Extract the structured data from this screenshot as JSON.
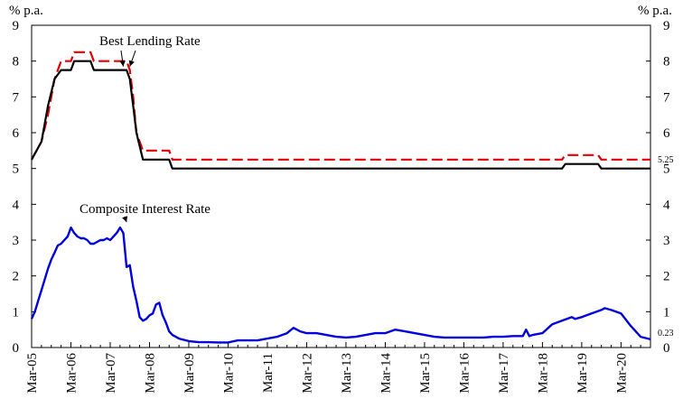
{
  "chart_data": {
    "type": "line",
    "left_axis_unit": "% p.a.",
    "right_axis_unit": "% p.a.",
    "ylim": [
      0,
      9
    ],
    "yticks": [
      0,
      1,
      2,
      3,
      4,
      5,
      6,
      7,
      8,
      9
    ],
    "xlim": [
      "2005-03",
      "2020-12"
    ],
    "xtick_labels": [
      "Mar-05",
      "Mar-06",
      "Mar-07",
      "Mar-08",
      "Mar-09",
      "Mar-10",
      "Mar-11",
      "Mar-12",
      "Mar-13",
      "Mar-14",
      "Mar-15",
      "Mar-16",
      "Mar-17",
      "Mar-18",
      "Mar-19",
      "Mar-20"
    ],
    "grid": false,
    "colors": {
      "best_lending_rate_upper": "#e00000",
      "best_lending_rate_lower": "#000000",
      "composite_interest_rate": "#0000dd",
      "axis": "#000000"
    },
    "annotations": [
      {
        "text": "Best Lending Rate",
        "target_series": "best_lending_rate",
        "targets": [
          {
            "date": "2007-07",
            "y": 7.75
          },
          {
            "date": "2007-09",
            "y": 7.75
          }
        ]
      },
      {
        "text": "Composite Interest Rate",
        "target_series": "composite_interest_rate",
        "targets": [
          {
            "date": "2007-08",
            "y": 3.4
          }
        ]
      }
    ],
    "end_labels": [
      {
        "text": "5.25",
        "series": "best_lending_rate_upper",
        "value": 5.25
      },
      {
        "text": "0.23",
        "series": "composite_interest_rate",
        "value": 0.23
      }
    ],
    "series": [
      {
        "id": "best_lending_rate_upper",
        "style": "dashed",
        "points": [
          [
            "2005-03",
            5.25
          ],
          [
            "2005-06",
            5.75
          ],
          [
            "2005-08",
            6.5
          ],
          [
            "2005-10",
            7.5
          ],
          [
            "2005-12",
            8.0
          ],
          [
            "2006-03",
            8.0
          ],
          [
            "2006-04",
            8.25
          ],
          [
            "2006-09",
            8.25
          ],
          [
            "2006-10",
            8.0
          ],
          [
            "2007-08",
            8.0
          ],
          [
            "2007-09",
            7.75
          ],
          [
            "2007-10",
            7.0
          ],
          [
            "2007-11",
            6.0
          ],
          [
            "2008-01",
            5.5
          ],
          [
            "2008-09",
            5.5
          ],
          [
            "2008-10",
            5.25
          ],
          [
            "2018-09",
            5.25
          ],
          [
            "2018-10",
            5.375
          ],
          [
            "2019-08",
            5.375
          ],
          [
            "2019-09",
            5.25
          ],
          [
            "2020-12",
            5.25
          ]
        ]
      },
      {
        "id": "best_lending_rate_lower",
        "style": "solid",
        "points": [
          [
            "2005-03",
            5.25
          ],
          [
            "2005-06",
            5.75
          ],
          [
            "2005-08",
            6.75
          ],
          [
            "2005-10",
            7.5
          ],
          [
            "2005-12",
            7.75
          ],
          [
            "2006-03",
            7.75
          ],
          [
            "2006-04",
            8.0
          ],
          [
            "2006-09",
            8.0
          ],
          [
            "2006-10",
            7.75
          ],
          [
            "2007-06",
            7.75
          ],
          [
            "2007-08",
            7.75
          ],
          [
            "2007-09",
            7.5
          ],
          [
            "2007-10",
            6.75
          ],
          [
            "2007-11",
            6.0
          ],
          [
            "2008-01",
            5.25
          ],
          [
            "2008-09",
            5.25
          ],
          [
            "2008-10",
            5.0
          ],
          [
            "2018-09",
            5.0
          ],
          [
            "2018-10",
            5.125
          ],
          [
            "2019-08",
            5.125
          ],
          [
            "2019-09",
            5.0
          ],
          [
            "2020-12",
            5.0
          ]
        ]
      },
      {
        "id": "composite_interest_rate",
        "style": "solid",
        "points": [
          [
            "2005-03",
            0.8
          ],
          [
            "2005-04",
            1.0
          ],
          [
            "2005-05",
            1.3
          ],
          [
            "2005-06",
            1.6
          ],
          [
            "2005-07",
            1.9
          ],
          [
            "2005-08",
            2.2
          ],
          [
            "2005-09",
            2.45
          ],
          [
            "2005-10",
            2.65
          ],
          [
            "2005-11",
            2.85
          ],
          [
            "2005-12",
            2.9
          ],
          [
            "2006-01",
            3.0
          ],
          [
            "2006-02",
            3.1
          ],
          [
            "2006-03",
            3.35
          ],
          [
            "2006-04",
            3.2
          ],
          [
            "2006-05",
            3.1
          ],
          [
            "2006-06",
            3.05
          ],
          [
            "2006-07",
            3.05
          ],
          [
            "2006-08",
            3.0
          ],
          [
            "2006-09",
            2.9
          ],
          [
            "2006-10",
            2.9
          ],
          [
            "2006-11",
            2.95
          ],
          [
            "2006-12",
            3.0
          ],
          [
            "2007-01",
            3.0
          ],
          [
            "2007-02",
            3.05
          ],
          [
            "2007-03",
            3.0
          ],
          [
            "2007-04",
            3.1
          ],
          [
            "2007-05",
            3.2
          ],
          [
            "2007-06",
            3.35
          ],
          [
            "2007-07",
            3.2
          ],
          [
            "2007-08",
            2.25
          ],
          [
            "2007-09",
            2.3
          ],
          [
            "2007-10",
            1.7
          ],
          [
            "2007-11",
            1.3
          ],
          [
            "2007-12",
            0.85
          ],
          [
            "2008-01",
            0.75
          ],
          [
            "2008-02",
            0.8
          ],
          [
            "2008-03",
            0.9
          ],
          [
            "2008-04",
            0.95
          ],
          [
            "2008-05",
            1.2
          ],
          [
            "2008-06",
            1.25
          ],
          [
            "2008-07",
            0.9
          ],
          [
            "2008-08",
            0.7
          ],
          [
            "2008-09",
            0.45
          ],
          [
            "2008-10",
            0.35
          ],
          [
            "2008-11",
            0.3
          ],
          [
            "2008-12",
            0.25
          ],
          [
            "2009-03",
            0.18
          ],
          [
            "2009-06",
            0.15
          ],
          [
            "2009-09",
            0.15
          ],
          [
            "2009-12",
            0.14
          ],
          [
            "2010-03",
            0.14
          ],
          [
            "2010-06",
            0.2
          ],
          [
            "2010-09",
            0.2
          ],
          [
            "2010-12",
            0.2
          ],
          [
            "2011-03",
            0.25
          ],
          [
            "2011-06",
            0.3
          ],
          [
            "2011-09",
            0.4
          ],
          [
            "2011-11",
            0.55
          ],
          [
            "2012-01",
            0.45
          ],
          [
            "2012-03",
            0.4
          ],
          [
            "2012-06",
            0.4
          ],
          [
            "2012-09",
            0.35
          ],
          [
            "2012-12",
            0.3
          ],
          [
            "2013-03",
            0.28
          ],
          [
            "2013-06",
            0.3
          ],
          [
            "2013-09",
            0.35
          ],
          [
            "2013-12",
            0.4
          ],
          [
            "2014-03",
            0.4
          ],
          [
            "2014-06",
            0.5
          ],
          [
            "2014-09",
            0.45
          ],
          [
            "2014-12",
            0.4
          ],
          [
            "2015-03",
            0.35
          ],
          [
            "2015-06",
            0.3
          ],
          [
            "2015-09",
            0.28
          ],
          [
            "2015-12",
            0.28
          ],
          [
            "2016-03",
            0.28
          ],
          [
            "2016-06",
            0.28
          ],
          [
            "2016-09",
            0.28
          ],
          [
            "2016-12",
            0.3
          ],
          [
            "2017-03",
            0.3
          ],
          [
            "2017-06",
            0.32
          ],
          [
            "2017-09",
            0.32
          ],
          [
            "2017-10",
            0.5
          ],
          [
            "2017-11",
            0.32
          ],
          [
            "2017-12",
            0.35
          ],
          [
            "2018-03",
            0.4
          ],
          [
            "2018-06",
            0.65
          ],
          [
            "2018-09",
            0.75
          ],
          [
            "2018-12",
            0.85
          ],
          [
            "2019-01",
            0.8
          ],
          [
            "2019-03",
            0.85
          ],
          [
            "2019-06",
            0.95
          ],
          [
            "2019-09",
            1.05
          ],
          [
            "2019-10",
            1.1
          ],
          [
            "2019-12",
            1.05
          ],
          [
            "2020-03",
            0.95
          ],
          [
            "2020-06",
            0.6
          ],
          [
            "2020-09",
            0.3
          ],
          [
            "2020-12",
            0.23
          ]
        ]
      }
    ]
  }
}
